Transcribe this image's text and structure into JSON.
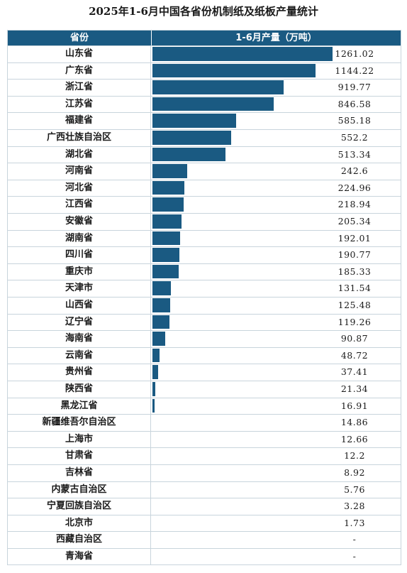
{
  "title": "2025年1-6月中国各省份机制纸及纸板产量统计",
  "header": {
    "col1": "省份",
    "col2": "1-6月产量（万吨）"
  },
  "colors": {
    "bar": "#1a5a82",
    "header_bg": "#1a5a82"
  },
  "chart_data": {
    "type": "bar",
    "orientation": "horizontal",
    "title": "2025年1-6月中国各省份机制纸及纸板产量统计",
    "xlabel": "1-6月产量（万吨）",
    "ylabel": "省份",
    "categories": [
      "山东省",
      "广东省",
      "浙江省",
      "江苏省",
      "福建省",
      "广西壮族自治区",
      "湖北省",
      "河南省",
      "河北省",
      "江西省",
      "安徽省",
      "湖南省",
      "四川省",
      "重庆市",
      "天津市",
      "山西省",
      "辽宁省",
      "海南省",
      "云南省",
      "贵州省",
      "陕西省",
      "黑龙江省",
      "新疆维吾尔自治区",
      "上海市",
      "甘肃省",
      "吉林省",
      "内蒙古自治区",
      "宁夏回族自治区",
      "北京市",
      "西藏自治区",
      "青海省"
    ],
    "values": [
      1261.02,
      1144.22,
      919.77,
      846.58,
      585.18,
      552.2,
      513.34,
      242.6,
      224.96,
      218.94,
      205.34,
      192.01,
      190.77,
      185.33,
      131.54,
      125.48,
      119.26,
      90.87,
      48.72,
      37.41,
      21.34,
      16.91,
      14.86,
      12.66,
      12.2,
      8.92,
      5.76,
      3.28,
      1.73,
      null,
      null
    ],
    "labels": [
      "1261.02",
      "1144.22",
      "919.77",
      "846.58",
      "585.18",
      "552.2",
      "513.34",
      "242.6",
      "224.96",
      "218.94",
      "205.34",
      "192.01",
      "190.77",
      "185.33",
      "131.54",
      "125.48",
      "119.26",
      "90.87",
      "48.72",
      "37.41",
      "21.34",
      "16.91",
      "14.86",
      "12.66",
      "12.2",
      "8.92",
      "5.76",
      "3.28",
      "1.73",
      "-",
      "-"
    ],
    "bar_shown": [
      true,
      true,
      true,
      true,
      true,
      true,
      true,
      true,
      true,
      true,
      true,
      true,
      true,
      true,
      true,
      true,
      true,
      true,
      true,
      true,
      true,
      true,
      false,
      false,
      false,
      false,
      false,
      false,
      false,
      false,
      false
    ]
  }
}
